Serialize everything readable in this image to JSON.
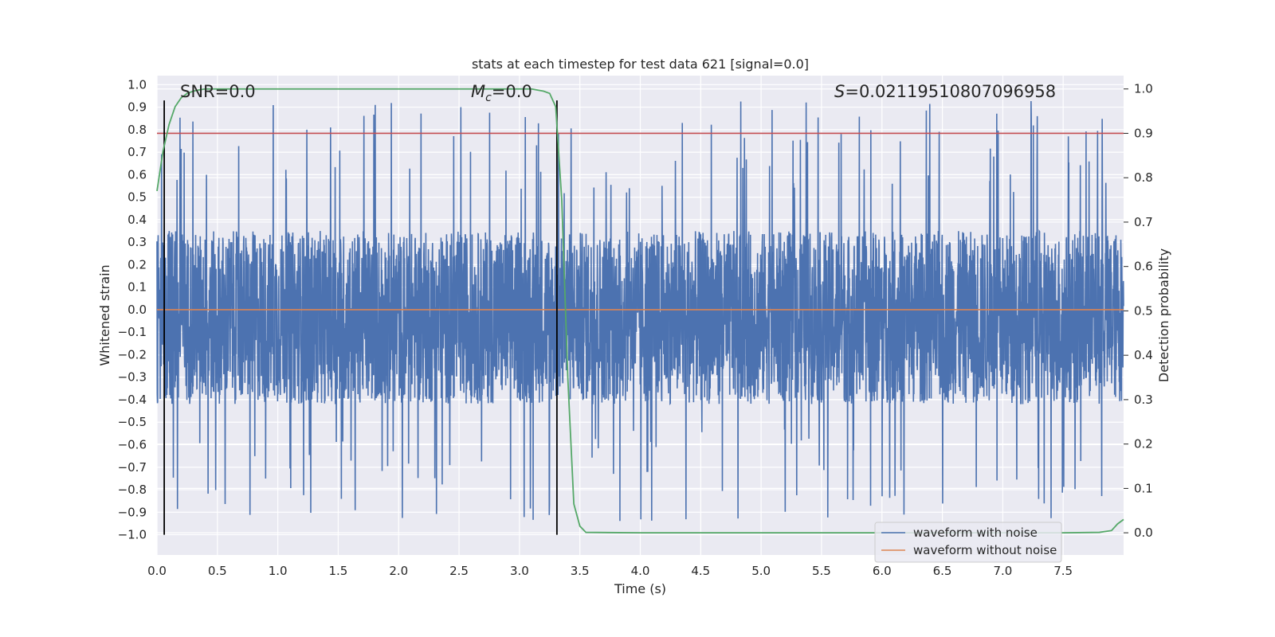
{
  "chart_data": {
    "type": "line",
    "title": "stats at each timestep for test data 621 [signal=0.0]",
    "xlabel": "Time (s)",
    "ylabel_left": "Whitened strain",
    "ylabel_right": "Detection probability",
    "xlim": [
      0.0,
      8.0
    ],
    "ylim_left": [
      -1.09,
      1.04
    ],
    "ylim_right": [
      -0.05,
      1.03
    ],
    "x_ticks": [
      "0.0",
      "0.5",
      "1.0",
      "1.5",
      "2.0",
      "2.5",
      "3.0",
      "3.5",
      "4.0",
      "4.5",
      "5.0",
      "5.5",
      "6.0",
      "6.5",
      "7.0",
      "7.5"
    ],
    "y_left_ticks": [
      "1.0",
      "0.9",
      "0.8",
      "0.7",
      "0.6",
      "0.5",
      "0.4",
      "0.3",
      "0.2",
      "0.1",
      "0.0",
      "-0.1",
      "-0.2",
      "-0.3",
      "-0.4",
      "-0.5",
      "-0.6",
      "-0.7",
      "-0.8",
      "-0.9",
      "-1.0"
    ],
    "y_right_ticks": [
      "1.0",
      "0.9",
      "0.8",
      "0.7",
      "0.6",
      "0.5",
      "0.4",
      "0.3",
      "0.2",
      "0.1",
      "0.0"
    ],
    "grid": true,
    "legend_position": "lower-right",
    "annotations": {
      "snr": "SNR=0.0",
      "mc_prefix": "M",
      "mc_sub": "c",
      "mc_suffix": "=0.0",
      "s_prefix": "S",
      "s_suffix": "=0.02119510807096958"
    },
    "series": [
      {
        "name": "waveform with noise",
        "axis": "left",
        "color": "#4c72b0",
        "description_values": {
          "envelope_max": 0.93,
          "envelope_min": -0.95,
          "dense_band": [
            -0.42,
            0.35
          ]
        }
      },
      {
        "name": "waveform without noise",
        "axis": "left",
        "color": "#dd8452",
        "x": [
          0.0,
          8.0
        ],
        "y": [
          0.0,
          0.0
        ]
      },
      {
        "axis": "right",
        "color": "#55a868",
        "x": [
          0.0,
          0.05,
          0.1,
          0.15,
          0.2,
          0.25,
          0.3,
          0.35,
          0.4,
          0.5,
          1.0,
          2.0,
          3.0,
          3.1,
          3.2,
          3.25,
          3.3,
          3.35,
          3.4,
          3.45,
          3.5,
          3.55,
          4.0,
          5.0,
          6.0,
          7.0,
          7.5,
          7.8,
          7.9,
          7.95,
          8.0
        ],
        "y": [
          0.77,
          0.86,
          0.92,
          0.96,
          0.98,
          0.99,
          0.995,
          0.998,
          1.0,
          1.0,
          1.0,
          1.0,
          1.0,
          1.0,
          0.995,
          0.99,
          0.96,
          0.75,
          0.35,
          0.065,
          0.015,
          0.001,
          0.0,
          0.0,
          0.0,
          0.0,
          0.0,
          0.001,
          0.005,
          0.02,
          0.03
        ]
      }
    ],
    "hlines": [
      {
        "axis": "right",
        "y": 0.9,
        "color": "#c44e52"
      }
    ],
    "vlines": [
      {
        "x": 0.06,
        "color": "#000000"
      },
      {
        "x": 3.31,
        "color": "#000000"
      }
    ]
  }
}
